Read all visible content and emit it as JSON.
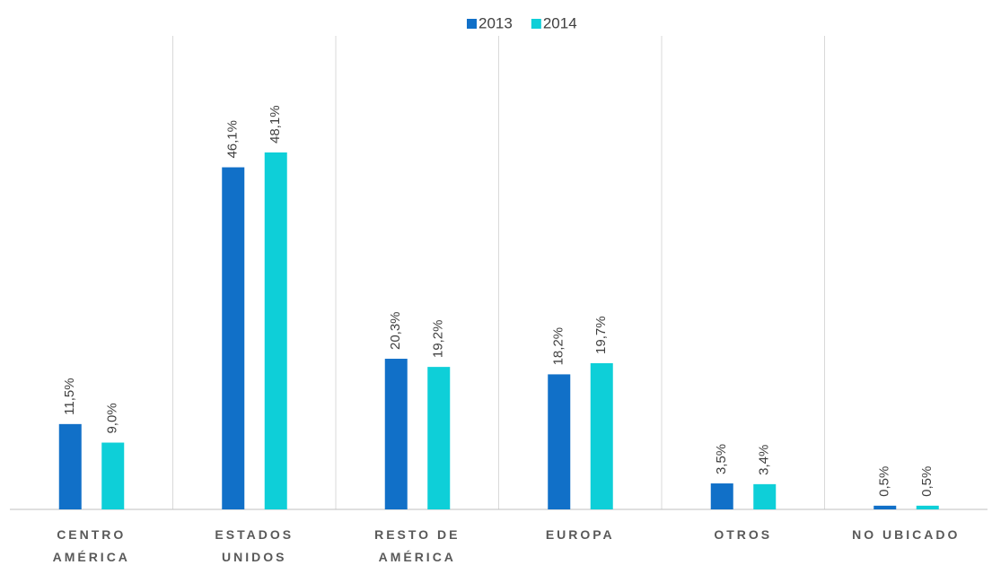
{
  "chart_data": {
    "type": "bar",
    "legend": "top",
    "categories": [
      "CENTRO AMÉRICA",
      "ESTADOS UNIDOS",
      "RESTO DE AMÉRICA",
      "EUROPA",
      "OTROS",
      "NO UBICADO"
    ],
    "series": [
      {
        "name": "2013",
        "color": "#1170c8",
        "values": [
          11.5,
          46.1,
          20.3,
          18.2,
          3.5,
          0.5
        ],
        "value_labels": [
          "11,5%",
          "46,1%",
          "20,3%",
          "18,2%",
          "3,5%",
          "0,5%"
        ]
      },
      {
        "name": "2014",
        "color": "#0ecfd8",
        "values": [
          9.0,
          48.1,
          19.2,
          19.7,
          3.4,
          0.5
        ],
        "value_labels": [
          "9,0%",
          "48,1%",
          "19,2%",
          "19,7%",
          "3,4%",
          "0,5%"
        ]
      }
    ]
  }
}
